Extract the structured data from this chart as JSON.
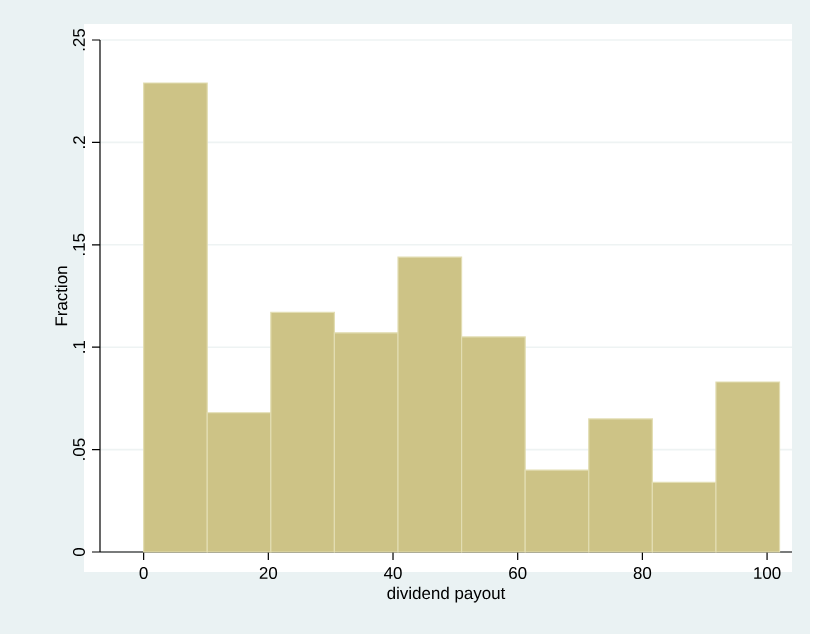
{
  "chart_data": {
    "type": "histogram",
    "xlabel": "dividend payout",
    "ylabel": "Fraction",
    "bins": [
      0,
      10.2,
      20.4,
      30.6,
      40.8,
      51,
      61.2,
      71.4,
      81.6,
      91.8,
      102
    ],
    "values": [
      0.229,
      0.068,
      0.117,
      0.107,
      0.144,
      0.105,
      0.04,
      0.065,
      0.034,
      0.083
    ],
    "color": "#cdc386",
    "xlim": [
      -7,
      104
    ],
    "xticks": [
      0,
      20,
      40,
      60,
      80,
      100
    ],
    "ylim": [
      0,
      0.25
    ],
    "yticks": [
      0,
      {
        "value": 0.05,
        "label": ".05"
      },
      {
        "value": 0.1,
        "label": ".1"
      },
      {
        "value": 0.15,
        "label": ".15"
      },
      {
        "value": 0.2,
        "label": ".2"
      },
      {
        "value": 0.25,
        "label": ".25"
      }
    ],
    "grid": "y"
  }
}
